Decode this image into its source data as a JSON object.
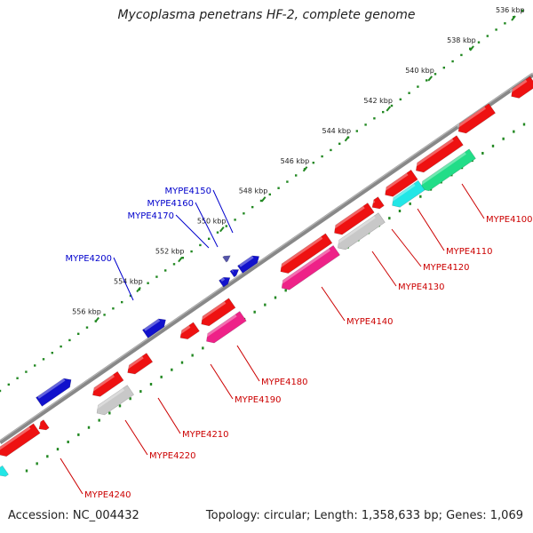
{
  "title": "Mycoplasma penetrans HF-2, complete genome",
  "footer": {
    "accession": "Accession: NC_004432",
    "stats": "Topology: circular; Length: 1,358,633 bp; Genes: 1,069"
  },
  "colors": {
    "cds_red": "#ee1111",
    "cds_blue": "#1111cc",
    "trna_magenta": "#ee2288",
    "rrna_grey": "#c8c8c8",
    "cyan": "#22e6e6",
    "green": "#22dd88",
    "dots_outer": "#228822",
    "dots_inner": "#228822",
    "backbone": "#888888",
    "label_red": "#cc0000",
    "label_blue": "#0000cc"
  },
  "ticks": [
    {
      "label": "536 kbp",
      "t": 0.0
    },
    {
      "label": "538 kbp",
      "t": 0.0833
    },
    {
      "label": "540 kbp",
      "t": 0.1667
    },
    {
      "label": "542 kbp",
      "t": 0.25
    },
    {
      "label": "544 kbp",
      "t": 0.3333
    },
    {
      "label": "546 kbp",
      "t": 0.4167
    },
    {
      "label": "548 kbp",
      "t": 0.5
    },
    {
      "label": "550 kbp",
      "t": 0.5833
    },
    {
      "label": "552 kbp",
      "t": 0.6667
    },
    {
      "label": "554 kbp",
      "t": 0.75
    },
    {
      "label": "556 kbp",
      "t": 0.8333
    }
  ],
  "genes_forward": [
    {
      "name": "MYPE4150",
      "color": "blue"
    },
    {
      "name": "MYPE4160",
      "color": "blue"
    },
    {
      "name": "MYPE4170",
      "color": "blue"
    },
    {
      "name": "MYPE4200",
      "color": "blue"
    }
  ],
  "genes_reverse": [
    {
      "name": "MYPE4100",
      "color": "red"
    },
    {
      "name": "MYPE4110",
      "color": "red"
    },
    {
      "name": "MYPE4120",
      "color": "red"
    },
    {
      "name": "MYPE4130",
      "color": "red"
    },
    {
      "name": "MYPE4140",
      "color": "red"
    },
    {
      "name": "MYPE4180",
      "color": "red"
    },
    {
      "name": "MYPE4190",
      "color": "red"
    },
    {
      "name": "MYPE4210",
      "color": "red"
    },
    {
      "name": "MYPE4220",
      "color": "red"
    },
    {
      "name": "MYPE4240",
      "color": "red"
    }
  ]
}
